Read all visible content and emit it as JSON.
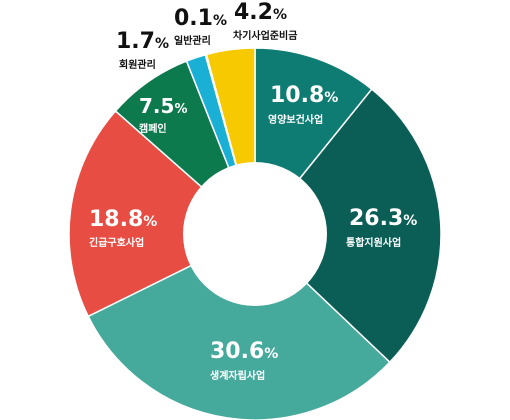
{
  "chart_data": {
    "type": "pie",
    "donut": true,
    "title": "",
    "slices": [
      {
        "label": "영양보건사업",
        "value": 10.8,
        "value_text": "10.8",
        "unit": "%",
        "color": "#0f7c73"
      },
      {
        "label": "통합지원사업",
        "value": 26.3,
        "value_text": "26.3",
        "unit": "%",
        "color": "#0b5e56"
      },
      {
        "label": "생계자립사업",
        "value": 30.6,
        "value_text": "30.6",
        "unit": "%",
        "color": "#45a99c"
      },
      {
        "label": "긴급구호사업",
        "value": 18.8,
        "value_text": "18.8",
        "unit": "%",
        "color": "#e84d44"
      },
      {
        "label": "캠페인",
        "value": 7.5,
        "value_text": "7.5",
        "unit": "%",
        "color": "#0d7a4e"
      },
      {
        "label": "회원관리",
        "value": 1.7,
        "value_text": "1.7",
        "unit": "%",
        "color": "#1ab0d6"
      },
      {
        "label": "일반관리",
        "value": 0.1,
        "value_text": "0.1",
        "unit": "%",
        "color": "#e0407a"
      },
      {
        "label": "차기사업준비금",
        "value": 4.2,
        "value_text": "4.2",
        "unit": "%",
        "color": "#f7c900"
      }
    ]
  }
}
